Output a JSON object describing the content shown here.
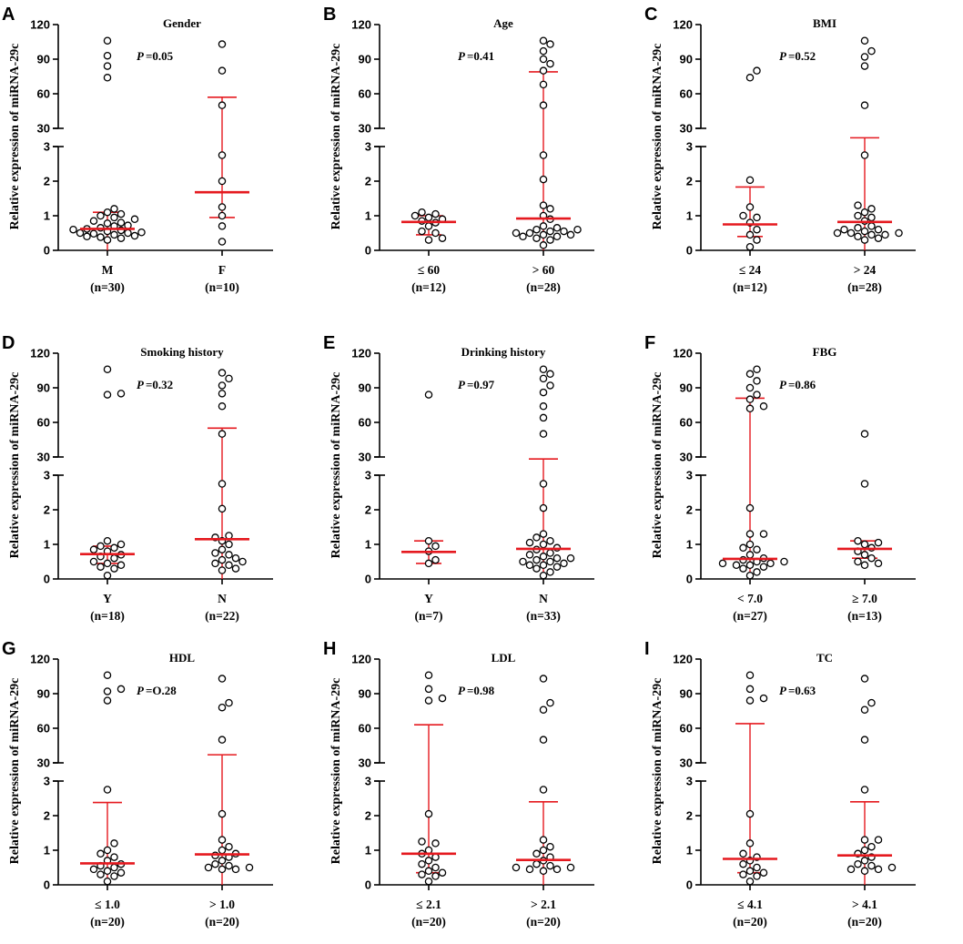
{
  "figure": {
    "y_axis_label": "Relative expression of miRNA-29c",
    "point_color": "#000000",
    "point_fill": "#ffffff",
    "summary_color": "#e5191f"
  },
  "chart_data": [
    {
      "type": "scatter",
      "panel": "A",
      "title": "Gender",
      "p_prefix": "P",
      "p_value": "=0.05",
      "ylabel": "Relative expression of miRNA-29c",
      "ylim_lower": [
        0,
        3
      ],
      "ylim_upper": [
        30,
        120
      ],
      "yticks_lower": [
        "0",
        "1",
        "2",
        "3"
      ],
      "yticks_upper": [
        "30",
        "60",
        "90",
        "120"
      ],
      "groups": [
        {
          "label": "M",
          "n": "(n=30)",
          "median": 0.62,
          "err_low": 0.0,
          "err_high": 1.1,
          "values": [
            0.4,
            0.45,
            0.5,
            0.38,
            0.55,
            0.6,
            0.42,
            0.5,
            0.65,
            0.7,
            0.48,
            0.52,
            0.35,
            0.3,
            0.58,
            0.62,
            0.72,
            0.8,
            0.85,
            0.9,
            0.78,
            0.95,
            1.0,
            1.05,
            1.2,
            1.1,
            74,
            84,
            93,
            106
          ]
        },
        {
          "label": "F",
          "n": "(n=10)",
          "median": 1.68,
          "err_low": 0.95,
          "err_high": 57,
          "values": [
            0.25,
            0.7,
            1.0,
            1.25,
            2.0,
            2.75,
            50,
            80,
            103
          ]
        }
      ]
    },
    {
      "type": "scatter",
      "panel": "B",
      "title": "Age",
      "p_prefix": "P",
      "p_value": "=0.41",
      "ylabel": "Relative expression of miRNA-29c",
      "ylim_lower": [
        0,
        3
      ],
      "ylim_upper": [
        30,
        120
      ],
      "yticks_lower": [
        "0",
        "1",
        "2",
        "3"
      ],
      "yticks_upper": [
        "30",
        "60",
        "90",
        "120"
      ],
      "groups": [
        {
          "label": "≤ 60",
          "n": "(n=12)",
          "median": 0.82,
          "err_low": 0.45,
          "err_high": 1.0,
          "values": [
            0.3,
            0.35,
            0.5,
            0.55,
            0.7,
            0.8,
            0.85,
            0.9,
            0.95,
            1.0,
            1.05,
            1.1
          ]
        },
        {
          "label": "> 60",
          "n": "(n=28)",
          "median": 0.92,
          "err_low": 0.0,
          "err_high": 79,
          "values": [
            0.15,
            0.3,
            0.35,
            0.4,
            0.45,
            0.5,
            0.55,
            0.6,
            0.65,
            0.7,
            0.5,
            0.45,
            0.4,
            0.6,
            0.55,
            0.9,
            1.0,
            1.2,
            1.3,
            2.05,
            2.75,
            50,
            68,
            80,
            86,
            90,
            97,
            103,
            106
          ]
        }
      ]
    },
    {
      "type": "scatter",
      "panel": "C",
      "title": "BMI",
      "p_prefix": "P",
      "p_value": "=0.52",
      "ylabel": "Relative expression of miRNA-29c",
      "ylim_lower": [
        0,
        3
      ],
      "ylim_upper": [
        30,
        120
      ],
      "yticks_lower": [
        "0",
        "1",
        "2",
        "3"
      ],
      "yticks_upper": [
        "30",
        "60",
        "90",
        "120"
      ],
      "groups": [
        {
          "label": "≤ 24",
          "n": "(n=12)",
          "median": 0.75,
          "err_low": 0.4,
          "err_high": 1.83,
          "values": [
            0.1,
            0.3,
            0.45,
            0.6,
            0.8,
            0.95,
            1.0,
            1.25,
            2.03,
            74,
            80
          ]
        },
        {
          "label": "> 24",
          "n": "(n=28)",
          "median": 0.82,
          "err_low": 0.0,
          "err_high": 16,
          "values": [
            0.4,
            0.45,
            0.5,
            0.35,
            0.55,
            0.6,
            0.3,
            0.5,
            0.65,
            0.7,
            0.45,
            0.5,
            0.6,
            0.85,
            0.95,
            1.0,
            1.1,
            1.2,
            1.3,
            2.75,
            50,
            84,
            92,
            97,
            106
          ]
        }
      ]
    },
    {
      "type": "scatter",
      "panel": "D",
      "title": "Smoking history",
      "p_prefix": "P",
      "p_value": "=0.32",
      "ylabel": "Relative expression of miRNA-29c",
      "ylim_lower": [
        0,
        3
      ],
      "ylim_upper": [
        30,
        120
      ],
      "yticks_lower": [
        "0",
        "1",
        "2",
        "3"
      ],
      "yticks_upper": [
        "30",
        "60",
        "90",
        "120"
      ],
      "groups": [
        {
          "label": "Y",
          "n": "(n=18)",
          "median": 0.72,
          "err_low": 0.45,
          "err_high": 0.95,
          "values": [
            0.1,
            0.3,
            0.35,
            0.4,
            0.45,
            0.5,
            0.6,
            0.65,
            0.7,
            0.8,
            0.85,
            0.9,
            0.95,
            1.0,
            1.1,
            84,
            85,
            106
          ]
        },
        {
          "label": "N",
          "n": "(n=22)",
          "median": 1.15,
          "err_low": 0.0,
          "err_high": 55,
          "values": [
            0.25,
            0.3,
            0.4,
            0.45,
            0.5,
            0.55,
            0.6,
            0.7,
            0.75,
            0.85,
            1.0,
            1.1,
            1.2,
            1.25,
            2.03,
            2.75,
            50,
            74,
            85,
            92,
            98,
            103
          ]
        }
      ]
    },
    {
      "type": "scatter",
      "panel": "E",
      "title": "Drinking history",
      "p_prefix": "P",
      "p_value": "=0.97",
      "ylabel": "Relative expression of miRNA-29c",
      "ylim_lower": [
        0,
        3
      ],
      "ylim_upper": [
        30,
        120
      ],
      "yticks_lower": [
        "0",
        "1",
        "2",
        "3"
      ],
      "yticks_upper": [
        "30",
        "60",
        "90",
        "120"
      ],
      "groups": [
        {
          "label": "Y",
          "n": "(n=7)",
          "median": 0.78,
          "err_low": 0.45,
          "err_high": 1.1,
          "values": [
            0.45,
            0.55,
            0.8,
            0.95,
            1.1,
            84
          ]
        },
        {
          "label": "N",
          "n": "(n=33)",
          "median": 0.87,
          "err_low": 0.0,
          "err_high": 27,
          "values": [
            0.1,
            0.2,
            0.3,
            0.35,
            0.4,
            0.45,
            0.5,
            0.55,
            0.6,
            0.65,
            0.4,
            0.5,
            0.6,
            0.7,
            0.75,
            0.85,
            0.9,
            1.0,
            1.05,
            1.1,
            1.2,
            1.3,
            2.05,
            2.75,
            50,
            64,
            74,
            86,
            92,
            98,
            102,
            106
          ]
        }
      ]
    },
    {
      "type": "scatter",
      "panel": "F",
      "title": "FBG",
      "p_prefix": "P",
      "p_value": "=0.86",
      "ylabel": "Relative expression of miRNA-29c",
      "ylim_lower": [
        0,
        3
      ],
      "ylim_upper": [
        30,
        120
      ],
      "yticks_lower": [
        "0",
        "1",
        "2",
        "3"
      ],
      "yticks_upper": [
        "30",
        "60",
        "90",
        "120"
      ],
      "groups": [
        {
          "label": "< 7.0",
          "n": "(n=27)",
          "median": 0.58,
          "err_low": 0.0,
          "err_high": 81,
          "values": [
            0.1,
            0.2,
            0.3,
            0.35,
            0.4,
            0.45,
            0.5,
            0.55,
            0.6,
            0.4,
            0.45,
            0.5,
            0.7,
            0.85,
            0.9,
            1.0,
            1.3,
            1.3,
            2.05,
            72,
            74,
            80,
            84,
            90,
            96,
            102,
            106
          ]
        },
        {
          "label": "≥ 7.0",
          "n": "(n=13)",
          "median": 0.87,
          "err_low": 0.6,
          "err_high": 1.1,
          "values": [
            0.4,
            0.45,
            0.5,
            0.6,
            0.7,
            0.8,
            0.9,
            1.0,
            1.05,
            1.1,
            2.75,
            50
          ]
        }
      ]
    },
    {
      "type": "scatter",
      "panel": "G",
      "title": "HDL",
      "p_prefix": "P",
      "p_value": "=O.28",
      "ylabel": "Relative expression of miRNA-29c",
      "ylim_lower": [
        0,
        3
      ],
      "ylim_upper": [
        30,
        120
      ],
      "yticks_lower": [
        "0",
        "1",
        "2",
        "3"
      ],
      "yticks_upper": [
        "30",
        "60",
        "90",
        "120"
      ],
      "groups": [
        {
          "label": "≤ 1.0",
          "n": "(n=20)",
          "median": 0.62,
          "err_low": 0.0,
          "err_high": 2.38,
          "values": [
            0.1,
            0.25,
            0.3,
            0.35,
            0.4,
            0.45,
            0.5,
            0.55,
            0.6,
            0.7,
            0.8,
            0.9,
            1.0,
            1.2,
            2.75,
            84,
            92,
            94,
            106
          ]
        },
        {
          "label": "> 1.0",
          "n": "(n=20)",
          "median": 0.88,
          "err_low": 0.0,
          "err_high": 37,
          "values": [
            0.45,
            0.5,
            0.55,
            0.6,
            0.5,
            0.45,
            0.7,
            0.8,
            0.85,
            0.9,
            1.0,
            1.1,
            1.3,
            2.05,
            50,
            78,
            82,
            103
          ]
        }
      ]
    },
    {
      "type": "scatter",
      "panel": "H",
      "title": "LDL",
      "p_prefix": "P",
      "p_value": "=0.98",
      "ylabel": "Relative expression of miRNA-29c",
      "ylim_lower": [
        0,
        3
      ],
      "ylim_upper": [
        30,
        120
      ],
      "yticks_lower": [
        "0",
        "1",
        "2",
        "3"
      ],
      "yticks_upper": [
        "30",
        "60",
        "90",
        "120"
      ],
      "groups": [
        {
          "label": "≤ 2.1",
          "n": "(n=20)",
          "median": 0.9,
          "err_low": 0.35,
          "err_high": 63,
          "values": [
            0.1,
            0.25,
            0.3,
            0.35,
            0.4,
            0.5,
            0.6,
            0.7,
            0.8,
            0.9,
            1.0,
            1.2,
            1.25,
            2.05,
            84,
            86,
            94,
            106
          ]
        },
        {
          "label": "> 2.1",
          "n": "(n=20)",
          "median": 0.72,
          "err_low": 0.0,
          "err_high": 2.4,
          "values": [
            0.4,
            0.45,
            0.5,
            0.55,
            0.5,
            0.45,
            0.6,
            0.7,
            0.8,
            0.9,
            1.0,
            1.1,
            1.3,
            2.75,
            50,
            76,
            82,
            103
          ]
        }
      ]
    },
    {
      "type": "scatter",
      "panel": "I",
      "title": "TC",
      "p_prefix": "P",
      "p_value": "=0.63",
      "ylabel": "Relative expression of miRNA-29c",
      "ylim_lower": [
        0,
        3
      ],
      "ylim_upper": [
        30,
        120
      ],
      "yticks_lower": [
        "0",
        "1",
        "2",
        "3"
      ],
      "yticks_upper": [
        "30",
        "60",
        "90",
        "120"
      ],
      "groups": [
        {
          "label": "≤ 4.1",
          "n": "(n=20)",
          "median": 0.75,
          "err_low": 0.35,
          "err_high": 64,
          "values": [
            0.1,
            0.25,
            0.3,
            0.35,
            0.4,
            0.5,
            0.6,
            0.7,
            0.8,
            0.9,
            1.2,
            2.05,
            84,
            86,
            94,
            106
          ]
        },
        {
          "label": "> 4.1",
          "n": "(n=20)",
          "median": 0.85,
          "err_low": 0.0,
          "err_high": 2.4,
          "values": [
            0.4,
            0.45,
            0.5,
            0.55,
            0.45,
            0.6,
            0.7,
            0.8,
            0.9,
            1.0,
            1.1,
            1.3,
            1.3,
            2.75,
            50,
            76,
            82,
            103
          ]
        }
      ]
    }
  ]
}
